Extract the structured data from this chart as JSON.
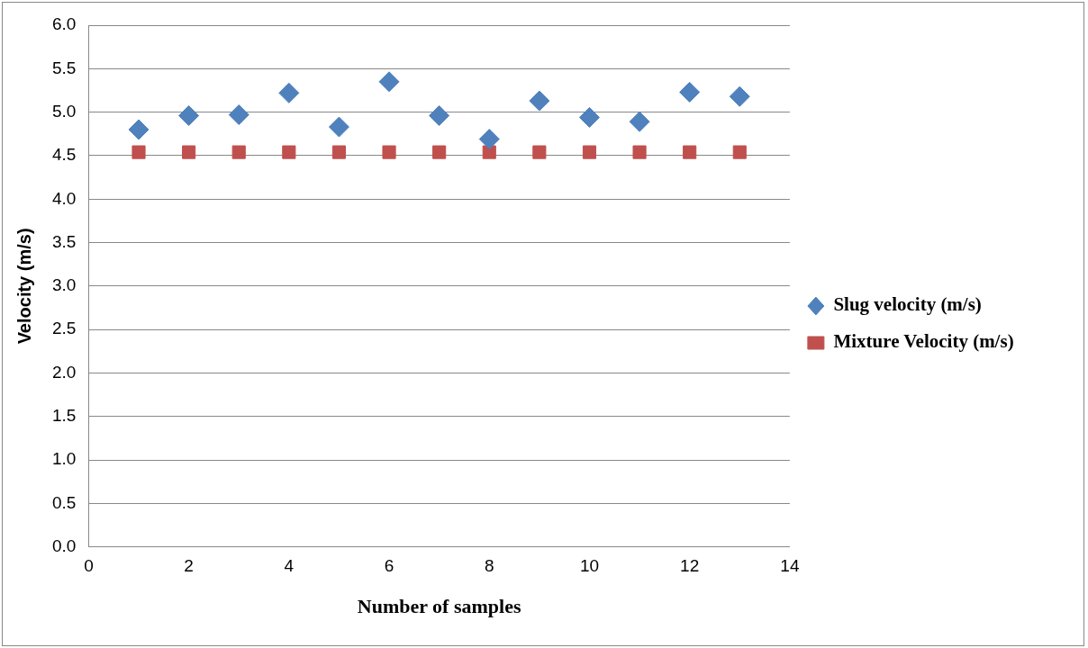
{
  "chart_data": {
    "type": "scatter",
    "xlabel": "Number of samples",
    "ylabel": "Velocity (m/s)",
    "x": [
      1,
      2,
      3,
      4,
      5,
      6,
      7,
      8,
      9,
      10,
      11,
      12,
      13
    ],
    "series": [
      {
        "name": "Slug velocity (m/s)",
        "color": "#4f81bd",
        "marker": "diamond",
        "values": [
          4.8,
          4.96,
          4.97,
          5.22,
          4.83,
          5.35,
          4.96,
          4.69,
          5.13,
          4.94,
          4.89,
          5.23,
          5.18
        ]
      },
      {
        "name": "Mixture Velocity (m/s)",
        "color": "#c0504d",
        "marker": "square",
        "values": [
          4.54,
          4.54,
          4.54,
          4.54,
          4.54,
          4.54,
          4.54,
          4.54,
          4.54,
          4.54,
          4.54,
          4.54,
          4.54
        ]
      }
    ],
    "xlim": [
      0,
      14
    ],
    "xticks": [
      0,
      2,
      4,
      6,
      8,
      10,
      12,
      14
    ],
    "ylim": [
      0,
      6
    ],
    "yticks": [
      {
        "value": 0,
        "label": "0.0"
      },
      0.5,
      {
        "value": 1,
        "label": "1.0"
      },
      1.5,
      {
        "value": 2,
        "label": "2.0"
      },
      2.5,
      {
        "value": 3,
        "label": "3.0"
      },
      3.5,
      {
        "value": 4,
        "label": "4.0"
      },
      4.5,
      {
        "value": 5,
        "label": "5.0"
      },
      5.5,
      {
        "value": 6,
        "label": "6.0"
      }
    ],
    "grid": "y",
    "legend": "right"
  }
}
